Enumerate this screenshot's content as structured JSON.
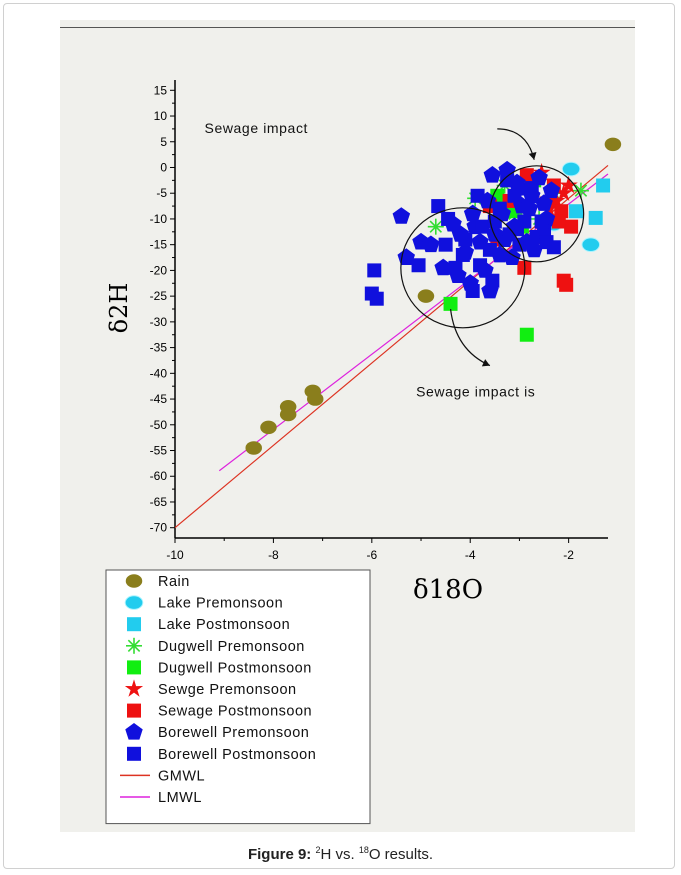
{
  "caption": {
    "label": "Figure 9:",
    "sup1": "2",
    "text1": "H vs. ",
    "sup2": "18",
    "text2": "O results."
  },
  "chart_data": {
    "type": "scatter",
    "xlabel": "δ18O",
    "ylabel": "δ2H",
    "xlim": [
      -10,
      -1.2
    ],
    "ylim": [
      -72,
      17
    ],
    "xticks": [
      "-10",
      "-8",
      "-6",
      "-4",
      "-2"
    ],
    "xtick_values": [
      -10,
      -8,
      -6,
      -4,
      -2
    ],
    "yticks": [
      "15",
      "10",
      "5",
      "0",
      "-5",
      "-10",
      "-15",
      "-20",
      "-25",
      "-30",
      "-35",
      "-40",
      "-45",
      "-50",
      "-55",
      "-60",
      "-65",
      "-70"
    ],
    "ytick_values": [
      15,
      10,
      5,
      0,
      -5,
      -10,
      -15,
      -20,
      -25,
      -30,
      -35,
      -40,
      -45,
      -50,
      -55,
      -60,
      -65,
      -70
    ],
    "annotations": [
      {
        "text": "Sewage impact",
        "x": -9.4,
        "y": 6.7
      },
      {
        "text": "Sewage impact is",
        "x": -5.1,
        "y": -44.5
      }
    ],
    "series": [
      {
        "name": "Rain",
        "marker": "ellipse",
        "color": "#8a7e1c",
        "points": [
          [
            -8.4,
            -54.5
          ],
          [
            -8.1,
            -50.5
          ],
          [
            -7.7,
            -48
          ],
          [
            -7.7,
            -46.5
          ],
          [
            -7.2,
            -43.5
          ],
          [
            -7.15,
            -45
          ],
          [
            -4.9,
            -25
          ],
          [
            -1.1,
            4.5
          ]
        ]
      },
      {
        "name": "Lake Premonsoon",
        "marker": "sphere",
        "color": "#22ccee",
        "points": [
          [
            -1.95,
            -0.3
          ],
          [
            -1.55,
            -15
          ],
          [
            -2.3,
            -11
          ]
        ]
      },
      {
        "name": "Lake Postmonsoon",
        "marker": "square",
        "color": "#22ccee",
        "points": [
          [
            -1.3,
            -3.5
          ],
          [
            -1.45,
            -9.8
          ],
          [
            -1.85,
            -8.5
          ]
        ]
      },
      {
        "name": "Dugwell Premonsoon",
        "marker": "asterisk",
        "color": "#33dd33",
        "points": [
          [
            -4.7,
            -11.5
          ],
          [
            -3.9,
            -6
          ],
          [
            -3.3,
            -3.5
          ],
          [
            -1.75,
            -4.5
          ],
          [
            -3.1,
            -9
          ],
          [
            -2.6,
            -10
          ],
          [
            -2.3,
            -5
          ]
        ]
      },
      {
        "name": "Dugwell Postmonsoon",
        "marker": "square",
        "color": "#11ee11",
        "points": [
          [
            -4.4,
            -26.5
          ],
          [
            -2.85,
            -32.5
          ],
          [
            -3.15,
            -8.5
          ],
          [
            -2.95,
            -11.5
          ],
          [
            -3.45,
            -5.5
          ],
          [
            -2.7,
            -2.5
          ]
        ]
      },
      {
        "name": "Sewge Premonsoon",
        "marker": "star",
        "color": "#ee1111",
        "points": [
          [
            -2.55,
            -1
          ],
          [
            -2.0,
            -3.5
          ],
          [
            -2.1,
            -5
          ],
          [
            -2.25,
            -6.5
          ],
          [
            -2.4,
            -8
          ]
        ]
      },
      {
        "name": "Sewage Postmonsoon",
        "marker": "square",
        "color": "#ee1111",
        "points": [
          [
            -2.1,
            -22
          ],
          [
            -2.05,
            -22.8
          ],
          [
            -2.9,
            -19.5
          ],
          [
            -2.15,
            -8.5
          ],
          [
            -1.95,
            -11.5
          ],
          [
            -2.45,
            -7
          ],
          [
            -2.3,
            -3.5
          ],
          [
            -2.85,
            -1.5
          ],
          [
            -3.2,
            -6.5
          ],
          [
            -3.6,
            -7.5
          ],
          [
            -2.6,
            -13.5
          ],
          [
            -3.45,
            -14
          ],
          [
            -2.2,
            -10.5
          ]
        ]
      },
      {
        "name": "Borewell Premonsoon",
        "marker": "pentagon",
        "color": "#1010dd",
        "points": [
          [
            -5.4,
            -9.5
          ],
          [
            -5.0,
            -14.5
          ],
          [
            -5.3,
            -17.5
          ],
          [
            -4.8,
            -15
          ],
          [
            -4.55,
            -19.5
          ],
          [
            -4.0,
            -22.5
          ],
          [
            -3.7,
            -20
          ],
          [
            -3.4,
            -17
          ],
          [
            -3.3,
            -14
          ],
          [
            -4.2,
            -13
          ],
          [
            -3.95,
            -9
          ],
          [
            -4.1,
            -16.5
          ],
          [
            -3.9,
            -11.5
          ],
          [
            -3.5,
            -13
          ],
          [
            -3.1,
            -11.5
          ],
          [
            -2.8,
            -8
          ],
          [
            -2.5,
            -7
          ],
          [
            -3.0,
            -4
          ],
          [
            -3.55,
            -1.5
          ],
          [
            -3.25,
            -0.5
          ],
          [
            -3.05,
            -3
          ],
          [
            -2.75,
            -5.5
          ],
          [
            -2.85,
            -14.5
          ],
          [
            -2.45,
            -10
          ],
          [
            -2.7,
            -16
          ],
          [
            -3.6,
            -24
          ],
          [
            -4.25,
            -21
          ],
          [
            -4.35,
            -11
          ],
          [
            -3.8,
            -14.5
          ],
          [
            -3.65,
            -6.5
          ],
          [
            -2.6,
            -2
          ],
          [
            -2.35,
            -4.5
          ],
          [
            -3.15,
            -17.5
          ],
          [
            -3.35,
            -9
          ],
          [
            -2.95,
            -7.5
          ]
        ]
      },
      {
        "name": "Borewell Postmonsoon",
        "marker": "square",
        "color": "#1010dd",
        "points": [
          [
            -5.95,
            -20
          ],
          [
            -5.9,
            -25.5
          ],
          [
            -6.0,
            -24.5
          ],
          [
            -5.05,
            -19
          ],
          [
            -4.65,
            -7.5
          ],
          [
            -4.45,
            -10
          ],
          [
            -4.1,
            -14
          ],
          [
            -4.3,
            -19.5
          ],
          [
            -3.8,
            -19
          ],
          [
            -3.6,
            -16
          ],
          [
            -3.2,
            -13
          ],
          [
            -3.0,
            -15
          ],
          [
            -2.65,
            -13.5
          ],
          [
            -2.5,
            -12.5
          ],
          [
            -2.3,
            -15.5
          ],
          [
            -3.4,
            -8
          ],
          [
            -3.1,
            -5.5
          ],
          [
            -3.75,
            -11.5
          ],
          [
            -3.55,
            -22
          ],
          [
            -3.95,
            -24
          ],
          [
            -4.15,
            -17
          ],
          [
            -2.9,
            -10.5
          ],
          [
            -3.25,
            -2.5
          ],
          [
            -2.75,
            -4
          ],
          [
            -2.55,
            -10.5
          ],
          [
            -3.85,
            -5.5
          ],
          [
            -3.05,
            -12
          ],
          [
            -4.5,
            -15
          ],
          [
            -2.45,
            -14.5
          ],
          [
            -3.5,
            -10.5
          ]
        ]
      }
    ],
    "lines": [
      {
        "name": "GMWL",
        "color": "#dd3322",
        "slope": 8,
        "intercept": 10,
        "x_range": [
          -10,
          -1.2
        ]
      },
      {
        "name": "LMWL",
        "color": "#dd22dd",
        "slope": 7.3,
        "intercept": 7.5,
        "x_range": [
          -9.1,
          -1.2
        ]
      }
    ],
    "circles": [
      {
        "cx": -4.15,
        "cy": -19.5,
        "rx_px": 62,
        "ry_px": 60
      },
      {
        "cx": -2.65,
        "cy": -9,
        "rx_px": 47,
        "ry_px": 48
      }
    ],
    "arrows": [
      {
        "from": [
          -3.45,
          7.5
        ],
        "ctrl": [
          -2.85,
          7.5
        ],
        "to": [
          -2.7,
          1.5
        ]
      },
      {
        "from": [
          -4.4,
          -27.5
        ],
        "ctrl": [
          -4.3,
          -35.5
        ],
        "to": [
          -3.6,
          -38.5
        ]
      }
    ],
    "legend_position": "bottom-left",
    "grid": false
  }
}
